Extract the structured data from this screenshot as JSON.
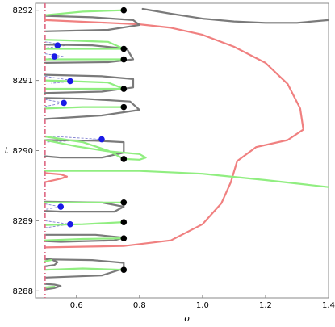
{
  "chart_data": {
    "type": "line",
    "title": "",
    "xlabel": "σ",
    "ylabel": "t",
    "xlim": [
      0.47,
      1.4
    ],
    "ylim": [
      8287.9,
      8292.1
    ],
    "xticks": [
      {
        "value": 0.6,
        "label": "0.6"
      },
      {
        "value": 0.8,
        "label": "0.8"
      },
      {
        "value": 1.0,
        "label": "1.0"
      },
      {
        "value": 1.2,
        "label": "1.2"
      },
      {
        "value": 1.4,
        "label": "1.4"
      }
    ],
    "yticks": [
      {
        "value": 8288,
        "label": "8288"
      },
      {
        "value": 8289,
        "label": "8289"
      },
      {
        "value": 8290,
        "label": "8290"
      },
      {
        "value": 8291,
        "label": "8291"
      },
      {
        "value": 8292,
        "label": "8292"
      }
    ],
    "grid": false,
    "frame": true,
    "colors": {
      "red_curve": "#f08080",
      "gray_curve": "#7a7a7a",
      "green_curve": "#90ee80",
      "critical_line": "#e0708a",
      "blue_dashed": "#8080d0",
      "black_point": "#000000",
      "blue_point": "#1a1ae6",
      "frame": "#888888"
    },
    "series": [
      {
        "color": "#f08080",
        "points": [
          [
            0.5,
            8288.62
          ],
          [
            0.75,
            8288.64
          ],
          [
            0.9,
            8288.72
          ],
          [
            1.0,
            8288.95
          ],
          [
            1.06,
            8289.25
          ],
          [
            1.09,
            8289.55
          ],
          [
            1.11,
            8289.85
          ],
          [
            1.17,
            8290.05
          ],
          [
            1.27,
            8290.15
          ],
          [
            1.32,
            8290.3
          ],
          [
            1.31,
            8290.6
          ],
          [
            1.27,
            8290.95
          ],
          [
            1.2,
            8291.25
          ],
          [
            1.1,
            8291.48
          ],
          [
            1.0,
            8291.65
          ],
          [
            0.9,
            8291.75
          ],
          [
            0.8,
            8291.8
          ],
          [
            0.7,
            8291.82
          ],
          [
            0.6,
            8291.84
          ],
          [
            0.5,
            8291.86
          ]
        ]
      },
      {
        "color": "#f08080",
        "points": [
          [
            0.5,
            8289.55
          ],
          [
            0.55,
            8289.6
          ],
          [
            0.57,
            8289.63
          ],
          [
            0.55,
            8289.66
          ],
          [
            0.5,
            8289.68
          ]
        ]
      },
      {
        "color": "#90ee80",
        "points": [
          [
            0.5,
            8289.71
          ],
          [
            0.8,
            8289.71
          ],
          [
            1.0,
            8289.67
          ],
          [
            1.2,
            8289.58
          ],
          [
            1.4,
            8289.48
          ]
        ]
      },
      {
        "color": "#7a7a7a",
        "points": [
          [
            0.81,
            8292.02
          ],
          [
            0.9,
            8291.95
          ],
          [
            1.0,
            8291.88
          ],
          [
            1.1,
            8291.84
          ],
          [
            1.2,
            8291.82
          ],
          [
            1.3,
            8291.82
          ],
          [
            1.4,
            8291.86
          ]
        ]
      },
      {
        "color": "#7a7a7a",
        "points": [
          [
            0.5,
            8291.7
          ],
          [
            0.7,
            8291.72
          ],
          [
            0.8,
            8291.79
          ],
          [
            0.78,
            8291.86
          ],
          [
            0.65,
            8291.9
          ],
          [
            0.5,
            8291.92
          ]
        ]
      },
      {
        "color": "#7a7a7a",
        "points": [
          [
            0.5,
            8291.25
          ],
          [
            0.7,
            8291.26
          ],
          [
            0.78,
            8291.3
          ],
          [
            0.76,
            8291.45
          ],
          [
            0.65,
            8291.5
          ],
          [
            0.5,
            8291.51
          ]
        ]
      },
      {
        "color": "#7a7a7a",
        "points": [
          [
            0.5,
            8290.82
          ],
          [
            0.68,
            8290.84
          ],
          [
            0.78,
            8290.9
          ],
          [
            0.78,
            8291.02
          ],
          [
            0.68,
            8291.06
          ],
          [
            0.5,
            8291.08
          ]
        ]
      },
      {
        "color": "#7a7a7a",
        "points": [
          [
            0.5,
            8290.45
          ],
          [
            0.68,
            8290.5
          ],
          [
            0.8,
            8290.58
          ],
          [
            0.77,
            8290.7
          ],
          [
            0.62,
            8290.74
          ],
          [
            0.5,
            8290.75
          ]
        ]
      },
      {
        "color": "#7a7a7a",
        "points": [
          [
            0.5,
            8290.15
          ],
          [
            0.66,
            8290.14
          ],
          [
            0.75,
            8290.12
          ],
          [
            0.75,
            8289.97
          ],
          [
            0.68,
            8289.9
          ],
          [
            0.55,
            8289.9
          ],
          [
            0.5,
            8289.92
          ]
        ]
      },
      {
        "color": "#7a7a7a",
        "points": [
          [
            0.5,
            8289.27
          ],
          [
            0.68,
            8289.26
          ],
          [
            0.75,
            8289.2
          ],
          [
            0.72,
            8289.13
          ],
          [
            0.55,
            8289.13
          ],
          [
            0.5,
            8289.14
          ]
        ]
      },
      {
        "color": "#7a7a7a",
        "points": [
          [
            0.5,
            8288.8
          ],
          [
            0.66,
            8288.8
          ],
          [
            0.75,
            8288.76
          ],
          [
            0.72,
            8288.72
          ],
          [
            0.55,
            8288.7
          ],
          [
            0.5,
            8288.71
          ]
        ]
      },
      {
        "color": "#7a7a7a",
        "points": [
          [
            0.5,
            8288.19
          ],
          [
            0.68,
            8288.22
          ],
          [
            0.75,
            8288.32
          ],
          [
            0.75,
            8288.4
          ],
          [
            0.65,
            8288.44
          ],
          [
            0.5,
            8288.45
          ]
        ]
      },
      {
        "color": "#7a7a7a",
        "points": [
          [
            0.5,
            8288.35
          ],
          [
            0.53,
            8288.37
          ],
          [
            0.54,
            8288.41
          ],
          [
            0.52,
            8288.45
          ],
          [
            0.5,
            8288.46
          ]
        ]
      },
      {
        "color": "#7a7a7a",
        "points": [
          [
            0.5,
            8288.02
          ],
          [
            0.53,
            8288.04
          ],
          [
            0.55,
            8288.07
          ],
          [
            0.53,
            8288.09
          ],
          [
            0.5,
            8288.1
          ]
        ]
      },
      {
        "color": "#90ee80",
        "points": [
          [
            0.5,
            8291.93
          ],
          [
            0.62,
            8291.98
          ],
          [
            0.75,
            8292.0
          ]
        ]
      },
      {
        "color": "#90ee80",
        "points": [
          [
            0.5,
            8291.45
          ],
          [
            0.62,
            8291.45
          ],
          [
            0.75,
            8291.45
          ],
          [
            0.7,
            8291.55
          ],
          [
            0.58,
            8291.57
          ],
          [
            0.5,
            8291.58
          ]
        ]
      },
      {
        "color": "#90ee80",
        "points": [
          [
            0.5,
            8291.3
          ],
          [
            0.62,
            8291.3
          ],
          [
            0.75,
            8291.3
          ]
        ]
      },
      {
        "color": "#90ee80",
        "points": [
          [
            0.5,
            8290.88
          ],
          [
            0.65,
            8290.88
          ],
          [
            0.75,
            8290.88
          ],
          [
            0.7,
            8290.97
          ],
          [
            0.58,
            8290.99
          ],
          [
            0.5,
            8291.0
          ]
        ]
      },
      {
        "color": "#90ee80",
        "points": [
          [
            0.5,
            8290.6
          ],
          [
            0.62,
            8290.62
          ],
          [
            0.75,
            8290.62
          ]
        ]
      },
      {
        "color": "#90ee80",
        "points": [
          [
            0.5,
            8290.2
          ],
          [
            0.62,
            8290.12
          ],
          [
            0.7,
            8290.0
          ],
          [
            0.75,
            8289.88
          ],
          [
            0.8,
            8289.87
          ],
          [
            0.82,
            8289.9
          ],
          [
            0.8,
            8289.95
          ],
          [
            0.7,
            8289.99
          ],
          [
            0.6,
            8290.06
          ],
          [
            0.5,
            8290.15
          ]
        ]
      },
      {
        "color": "#90ee80",
        "points": [
          [
            0.5,
            8289.26
          ],
          [
            0.62,
            8289.26
          ],
          [
            0.75,
            8289.26
          ]
        ]
      },
      {
        "color": "#90ee80",
        "points": [
          [
            0.5,
            8288.94
          ],
          [
            0.62,
            8288.95
          ],
          [
            0.75,
            8288.98
          ]
        ]
      },
      {
        "color": "#90ee80",
        "points": [
          [
            0.5,
            8288.72
          ],
          [
            0.62,
            8288.74
          ],
          [
            0.75,
            8288.75
          ]
        ]
      },
      {
        "color": "#90ee80",
        "points": [
          [
            0.5,
            8288.3
          ],
          [
            0.62,
            8288.32
          ],
          [
            0.75,
            8288.3
          ]
        ]
      },
      {
        "color": "#90ee80",
        "points": [
          [
            0.5,
            8288.42
          ],
          [
            0.52,
            8288.44
          ]
        ]
      },
      {
        "color": "#90ee80",
        "points": [
          [
            0.5,
            8288.05
          ],
          [
            0.53,
            8288.06
          ]
        ]
      }
    ],
    "dashed_segments": [
      {
        "color": "#8080d0",
        "points": [
          [
            0.5,
            8291.55
          ],
          [
            0.57,
            8291.5
          ],
          [
            0.5,
            8291.46
          ]
        ]
      },
      {
        "color": "#8080d0",
        "points": [
          [
            0.5,
            8291.38
          ],
          [
            0.56,
            8291.34
          ],
          [
            0.5,
            8291.3
          ]
        ]
      },
      {
        "color": "#8080d0",
        "points": [
          [
            0.5,
            8291.06
          ],
          [
            0.6,
            8290.99
          ],
          [
            0.52,
            8290.96
          ]
        ]
      },
      {
        "color": "#8080d0",
        "points": [
          [
            0.5,
            8290.73
          ],
          [
            0.56,
            8290.68
          ],
          [
            0.5,
            8290.63
          ]
        ]
      },
      {
        "color": "#8080d0",
        "points": [
          [
            0.5,
            8290.21
          ],
          [
            0.68,
            8290.16
          ],
          [
            0.5,
            8290.12
          ]
        ]
      },
      {
        "color": "#8080d0",
        "points": [
          [
            0.5,
            8289.24
          ],
          [
            0.55,
            8289.2
          ],
          [
            0.5,
            8289.16
          ]
        ]
      },
      {
        "color": "#8080d0",
        "points": [
          [
            0.5,
            8289.0
          ],
          [
            0.58,
            8288.95
          ],
          [
            0.5,
            8288.9
          ]
        ]
      }
    ],
    "critical_line": {
      "x": 0.5,
      "color": "#e0708a"
    },
    "black_points": [
      [
        0.75,
        8292.0
      ],
      [
        0.75,
        8291.45
      ],
      [
        0.75,
        8291.3
      ],
      [
        0.75,
        8290.88
      ],
      [
        0.75,
        8290.62
      ],
      [
        0.75,
        8289.88
      ],
      [
        0.75,
        8289.26
      ],
      [
        0.75,
        8288.98
      ],
      [
        0.75,
        8288.75
      ],
      [
        0.75,
        8288.3
      ]
    ],
    "blue_points": [
      [
        0.54,
        8291.5
      ],
      [
        0.53,
        8291.34
      ],
      [
        0.58,
        8290.99
      ],
      [
        0.56,
        8290.68
      ],
      [
        0.68,
        8290.16
      ],
      [
        0.55,
        8289.2
      ],
      [
        0.58,
        8288.95
      ]
    ]
  }
}
